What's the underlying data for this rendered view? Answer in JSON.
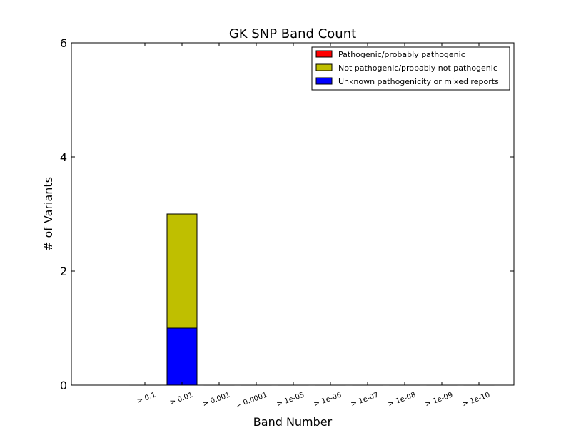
{
  "chart_data": {
    "type": "bar",
    "title": "GK SNP Band Count",
    "xlabel": "Band Number",
    "ylabel": "# of Variants",
    "ylim": [
      0,
      6
    ],
    "yticks": [
      "0",
      "2",
      "4",
      "6"
    ],
    "categories": [
      "> 0.1",
      "> 0.01",
      "> 0.001",
      "> 0.0001",
      "> 1e-05",
      "> 1e-06",
      "> 1e-07",
      "> 1e-08",
      "> 1e-09",
      "> 1e-10"
    ],
    "stacked": true,
    "series": [
      {
        "name": "Unknown pathogenicity or mixed reports",
        "color": "#0000ff",
        "values": [
          0,
          1,
          0,
          0,
          0,
          0,
          0,
          0,
          0,
          0
        ]
      },
      {
        "name": "Not pathogenic/probably not pathogenic",
        "color": "#bfbf00",
        "values": [
          0,
          2,
          0,
          0,
          0,
          0,
          0,
          0,
          0,
          0
        ]
      },
      {
        "name": "Pathogenic/probably pathogenic",
        "color": "#ff0000",
        "values": [
          0,
          0,
          0,
          0,
          0,
          0,
          0,
          0,
          0,
          0
        ]
      }
    ],
    "legend": {
      "position": "top-right",
      "order": [
        "Pathogenic/probably pathogenic",
        "Not pathogenic/probably not pathogenic",
        "Unknown pathogenicity or mixed reports"
      ]
    },
    "grid": false
  }
}
